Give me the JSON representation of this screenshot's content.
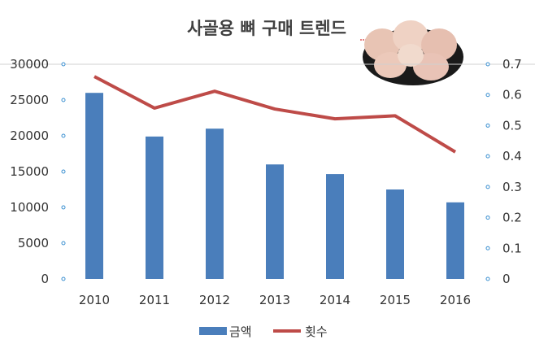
{
  "chart_data": {
    "type": "bar+line",
    "title": "사골용 뼈 구매 트렌드",
    "categories": [
      "2010",
      "2011",
      "2012",
      "2013",
      "2014",
      "2015",
      "2016"
    ],
    "series": [
      {
        "name": "금액",
        "type": "bar",
        "axis": "left",
        "color": "#4a7ebb",
        "values": [
          26000,
          19900,
          21000,
          16000,
          14650,
          12500,
          10700
        ]
      },
      {
        "name": "횟수",
        "type": "line",
        "axis": "right",
        "color": "#be4b48",
        "values": [
          0.66,
          0.557,
          0.612,
          0.554,
          0.522,
          0.532,
          0.414
        ]
      }
    ],
    "y_left": {
      "range": [
        0,
        30000
      ],
      "ticks": [
        "0",
        "5000",
        "10000",
        "15000",
        "20000",
        "25000",
        "30000"
      ]
    },
    "y_right": {
      "range": [
        0,
        0.7
      ],
      "ticks": [
        "0",
        "0.1",
        "0.2",
        "0.3",
        "0.4",
        "0.5",
        "0.6",
        "0.7"
      ]
    },
    "legend": "bottom",
    "grid": false
  }
}
